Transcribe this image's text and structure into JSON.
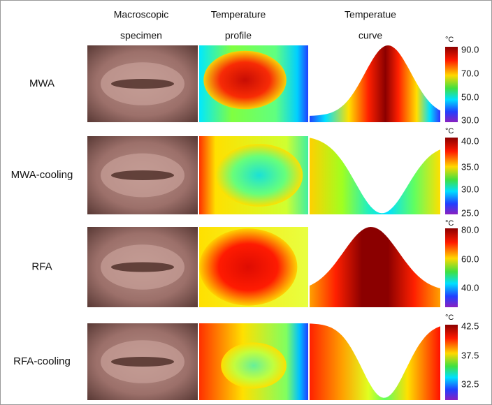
{
  "headers": [
    {
      "lines": [
        "Macroscopic",
        "specimen"
      ]
    },
    {
      "lines": [
        "Temperature",
        "profile"
      ]
    },
    {
      "lines": [
        "Temperatue",
        "curve"
      ]
    }
  ],
  "rows": [
    {
      "label": "MWA",
      "unit": "°C",
      "ticks": [
        "90.0",
        "70.0",
        "50.0",
        "30.0"
      ]
    },
    {
      "label": "MWA-cooling",
      "unit": "°C",
      "ticks": [
        "40.0",
        "35.0",
        "30.0",
        "25.0"
      ]
    },
    {
      "label": "RFA",
      "unit": "°C",
      "ticks": [
        "80.0",
        "60.0",
        "40.0"
      ]
    },
    {
      "label": "RFA-cooling",
      "unit": "°C",
      "ticks": [
        "42.5",
        "37.5",
        "32.5"
      ]
    }
  ]
}
